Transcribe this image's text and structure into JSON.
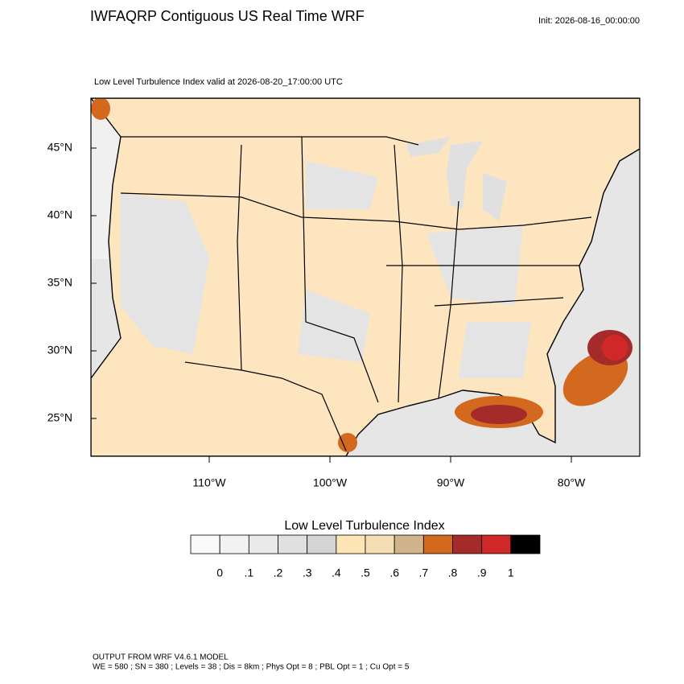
{
  "title": "IWFAQRP Contiguous US Real Time WRF",
  "init": "Init: 2026-08-16_00:00:00",
  "subtitle": "Low Level Turbulence Index valid at 2026-08-20_17:00:00 UTC",
  "map": {
    "lat_ticks": [
      {
        "value": 45,
        "label": "45°N"
      },
      {
        "value": 40,
        "label": "40°N"
      },
      {
        "value": 35,
        "label": "35°N"
      },
      {
        "value": 30,
        "label": "30°N"
      },
      {
        "value": 25,
        "label": "25°N"
      }
    ],
    "lon_ticks": [
      {
        "value": -110,
        "label": "110°W"
      },
      {
        "value": -100,
        "label": "100°W"
      },
      {
        "value": -90,
        "label": "90°W"
      },
      {
        "value": -80,
        "label": "80°W"
      }
    ]
  },
  "colorbar": {
    "title": "Low Level Turbulence Index",
    "colors": [
      "#fafafa",
      "#f2f2f2",
      "#eaeaea",
      "#e0e0e0",
      "#d4d4d4",
      "#ffe4b5",
      "#f5deb3",
      "#d2b48c",
      "#d2691e",
      "#a52a2a",
      "#d02828",
      "#000000"
    ],
    "ticks": [
      0,
      {
        "value": 0.1,
        "label": ".1"
      },
      {
        "value": 0.2,
        "label": ".2"
      },
      {
        "value": 0.3,
        "label": ".3"
      },
      {
        "value": 0.4,
        "label": ".4"
      },
      {
        "value": 0.5,
        "label": ".5"
      },
      {
        "value": 0.6,
        "label": ".6"
      },
      {
        "value": 0.7,
        "label": ".7"
      },
      {
        "value": 0.8,
        "label": ".8"
      },
      {
        "value": 0.9,
        "label": ".9"
      },
      1
    ]
  },
  "footer": {
    "line1": "OUTPUT FROM WRF V4.6.1 MODEL",
    "line2": "WE = 580 ; SN = 380 ; Levels = 38 ; Dis = 8km ; Phys Opt = 8 ; PBL Opt = 1 ; Cu Opt = 5"
  }
}
